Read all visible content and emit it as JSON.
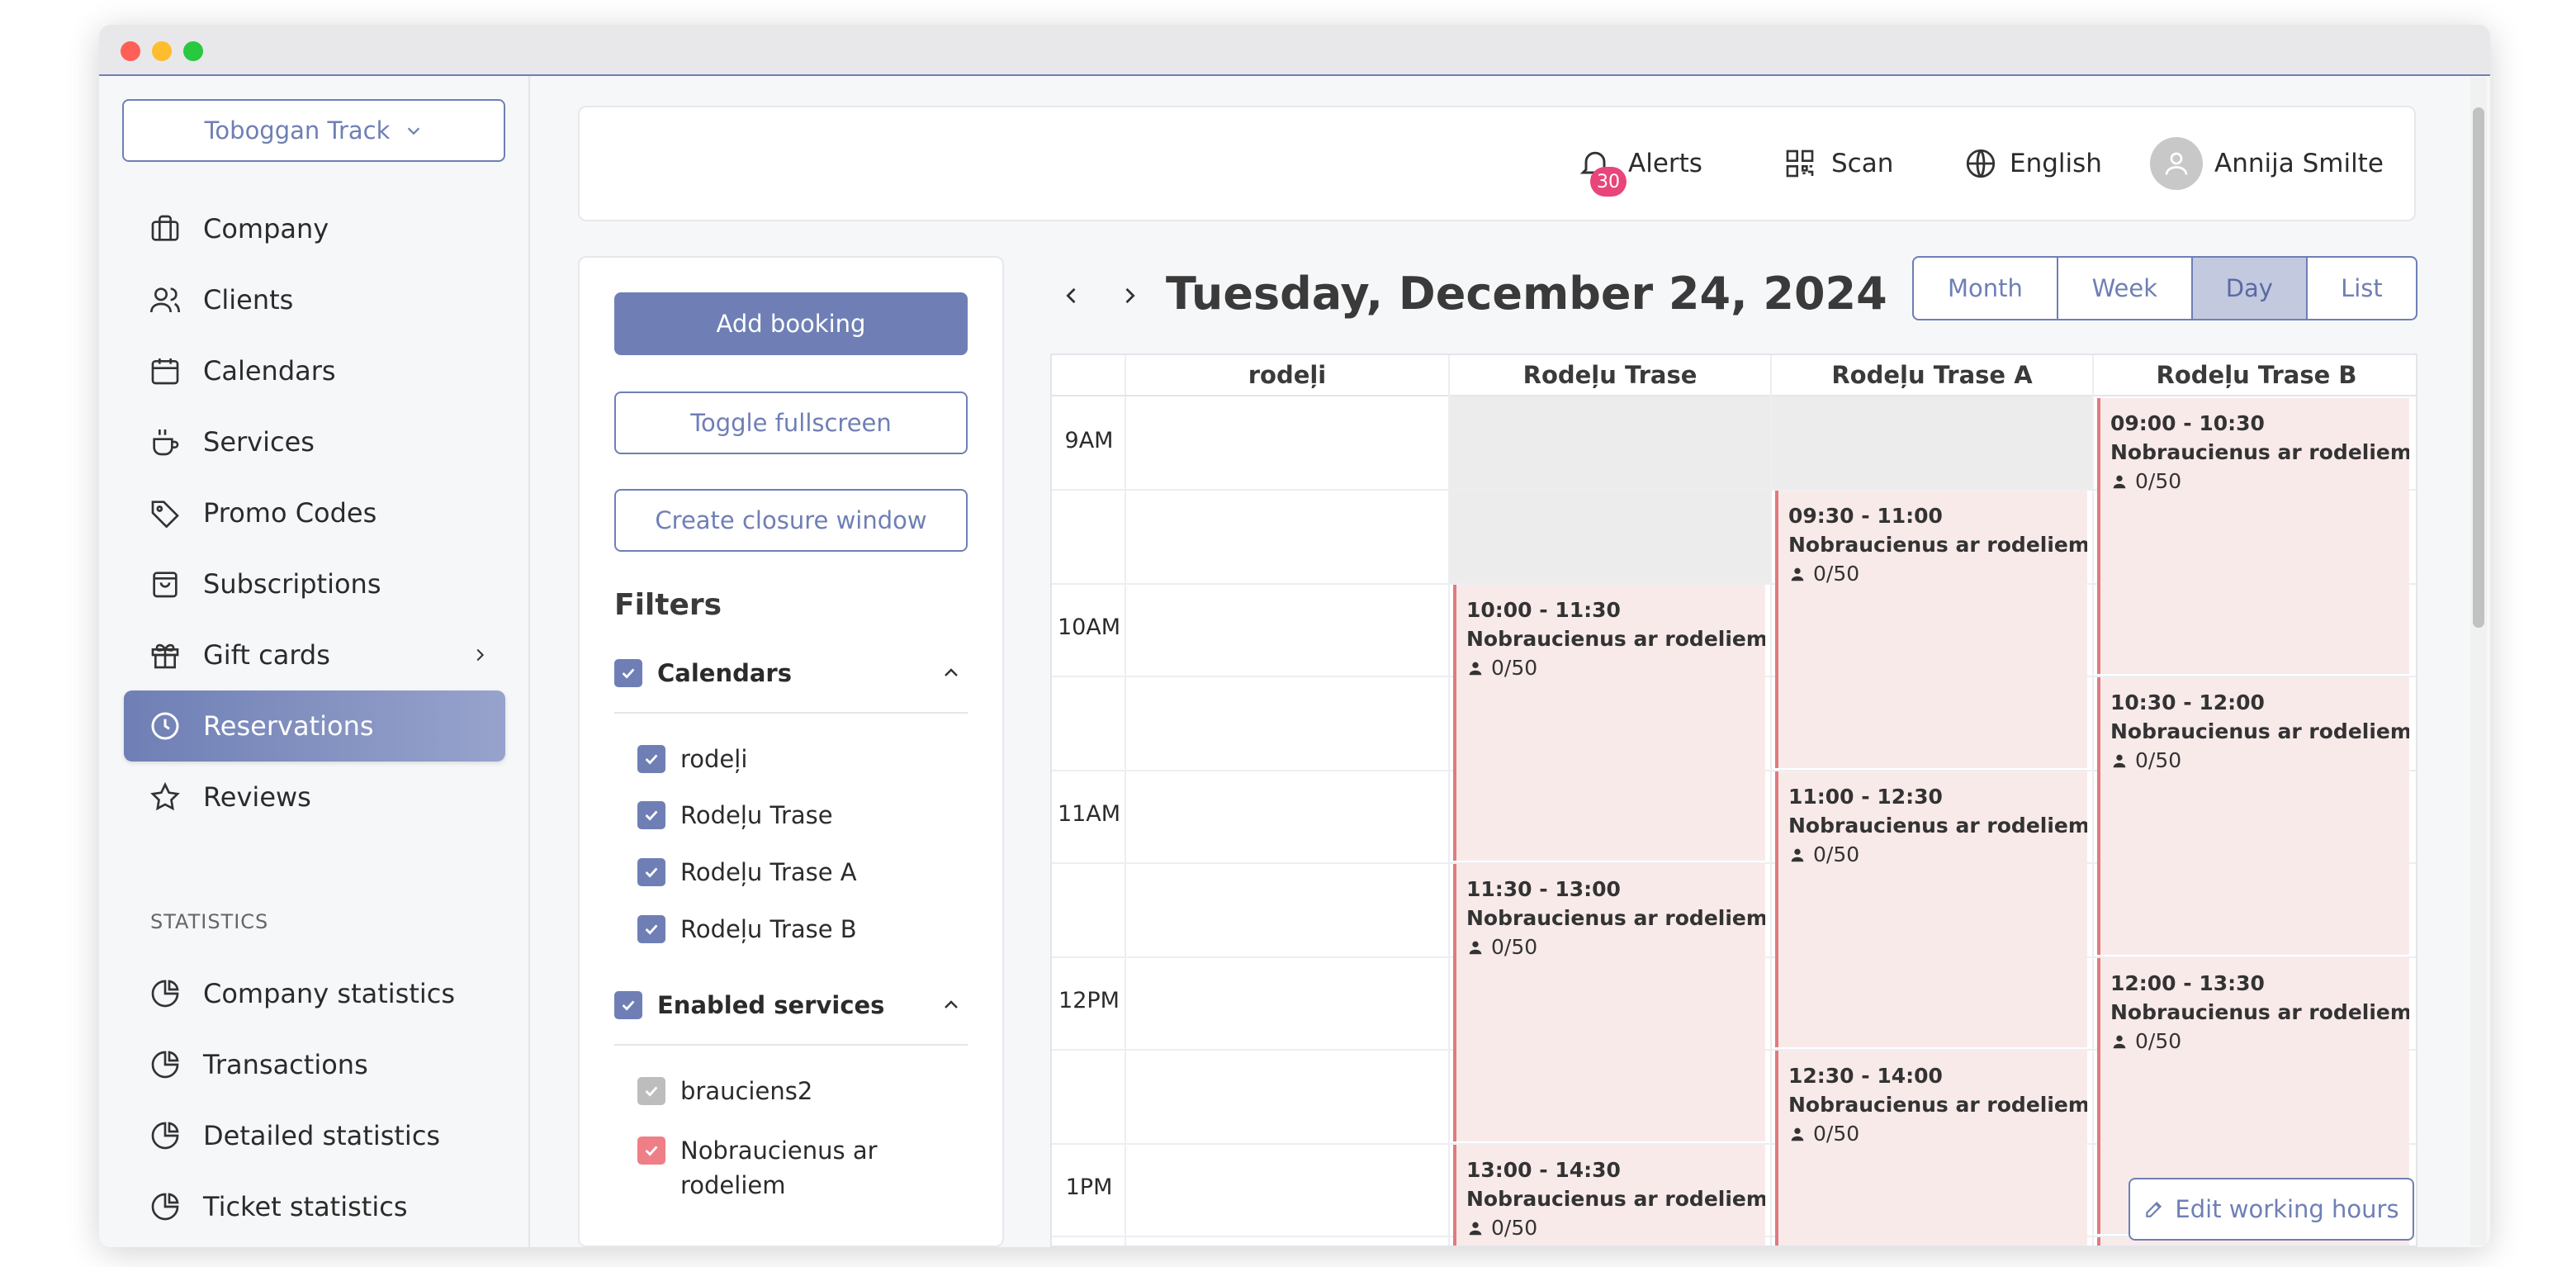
{
  "sidebar": {
    "location_label": "Toboggan Track",
    "items": [
      {
        "label": "Company",
        "icon": "briefcase-icon"
      },
      {
        "label": "Clients",
        "icon": "users-icon"
      },
      {
        "label": "Calendars",
        "icon": "calendar-icon"
      },
      {
        "label": "Services",
        "icon": "cup-icon"
      },
      {
        "label": "Promo Codes",
        "icon": "tag-icon"
      },
      {
        "label": "Subscriptions",
        "icon": "bag-icon"
      },
      {
        "label": "Gift cards",
        "icon": "gift-icon"
      },
      {
        "label": "Reservations",
        "icon": "clock-icon"
      },
      {
        "label": "Reviews",
        "icon": "star-icon"
      }
    ],
    "statistics_title": "STATISTICS",
    "stats_items": [
      {
        "label": "Company statistics"
      },
      {
        "label": "Transactions"
      },
      {
        "label": "Detailed statistics"
      },
      {
        "label": "Ticket statistics"
      }
    ]
  },
  "topbar": {
    "alerts_label": "Alerts",
    "alerts_count": "30",
    "scan_label": "Scan",
    "language_label": "English",
    "user_name": "Annija Smilte"
  },
  "filters": {
    "add_booking": "Add booking",
    "toggle_fullscreen": "Toggle fullscreen",
    "create_closure": "Create closure window",
    "title": "Filters",
    "calendars_title": "Calendars",
    "calendars": [
      "rodeļi",
      "Rodeļu Trase",
      "Rodeļu Trase A",
      "Rodeļu Trase B"
    ],
    "services_title": "Enabled services",
    "services": [
      "brauciens2",
      "Nobraucienus ar rodeliem"
    ]
  },
  "calendar": {
    "title": "Tuesday, December 24, 2024",
    "views": [
      "Month",
      "Week",
      "Day",
      "List"
    ],
    "active_view": "Day",
    "columns": [
      "rodeļi",
      "Rodeļu Trase",
      "Rodeļu Trase A",
      "Rodeļu Trase B"
    ],
    "times": [
      "9AM",
      "10AM",
      "11AM",
      "12PM",
      "1PM"
    ],
    "event_name": "Nobraucienus ar rodeliem",
    "event_capacity": "0/50",
    "events": {
      "col1": [
        "10:00 - 11:30",
        "11:30 - 13:00",
        "13:00 - 14:30"
      ],
      "col2": [
        "09:30 - 11:00",
        "11:00 - 12:30",
        "12:30 - 14:00"
      ],
      "col3": [
        "09:00 - 10:30",
        "10:30 - 12:00",
        "12:00 - 13:30"
      ]
    },
    "edit_working_hours": "Edit working hours"
  },
  "colors": {
    "accent": "#6f7fb5",
    "event_bg": "#f9eaea",
    "event_border": "#e07a80",
    "badge": "#e8457a"
  }
}
